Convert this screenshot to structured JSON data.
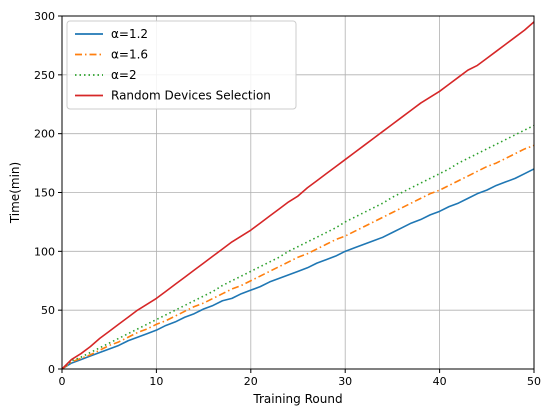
{
  "chart_data": {
    "type": "line",
    "xlabel": "Training Round",
    "ylabel": "Time(min)",
    "xlim": [
      0,
      50
    ],
    "ylim": [
      0,
      300
    ],
    "xticks": [
      0,
      10,
      20,
      30,
      40,
      50
    ],
    "yticks": [
      0,
      50,
      100,
      150,
      200,
      250,
      300
    ],
    "grid": true,
    "legend_position": "top-left",
    "x": [
      0,
      1,
      2,
      3,
      4,
      5,
      6,
      7,
      8,
      9,
      10,
      11,
      12,
      13,
      14,
      15,
      16,
      17,
      18,
      19,
      20,
      21,
      22,
      23,
      24,
      25,
      26,
      27,
      28,
      29,
      30,
      31,
      32,
      33,
      34,
      35,
      36,
      37,
      38,
      39,
      40,
      41,
      42,
      43,
      44,
      45,
      46,
      47,
      48,
      49,
      50
    ],
    "series": [
      {
        "name": "α=1.2",
        "color": "#1f77b4",
        "style": "solid",
        "values": [
          0,
          5,
          8,
          11,
          14,
          17,
          20,
          24,
          27,
          30,
          33,
          37,
          40,
          44,
          47,
          51,
          54,
          58,
          60,
          64,
          67,
          70,
          74,
          77,
          80,
          83,
          86,
          90,
          93,
          96,
          100,
          103,
          106,
          109,
          112,
          116,
          120,
          124,
          127,
          131,
          134,
          138,
          141,
          145,
          149,
          152,
          156,
          159,
          162,
          166,
          170
        ]
      },
      {
        "name": "α=1.6",
        "color": "#ff7f0e",
        "style": "dashdot",
        "values": [
          0,
          6,
          9,
          12,
          16,
          20,
          23,
          27,
          31,
          34,
          38,
          41,
          45,
          49,
          53,
          56,
          60,
          64,
          68,
          71,
          75,
          79,
          83,
          87,
          91,
          95,
          98,
          102,
          106,
          110,
          113,
          117,
          121,
          125,
          129,
          133,
          137,
          141,
          145,
          149,
          152,
          156,
          160,
          164,
          168,
          172,
          175,
          179,
          183,
          187,
          190
        ]
      },
      {
        "name": "α=2",
        "color": "#2ca02c",
        "style": "dotted",
        "values": [
          0,
          7,
          10,
          14,
          18,
          22,
          26,
          30,
          34,
          38,
          42,
          46,
          50,
          54,
          58,
          62,
          66,
          71,
          75,
          79,
          83,
          87,
          91,
          95,
          100,
          104,
          108,
          112,
          116,
          120,
          125,
          129,
          133,
          137,
          141,
          146,
          150,
          154,
          158,
          162,
          166,
          170,
          175,
          179,
          183,
          187,
          191,
          195,
          199,
          203,
          207
        ]
      },
      {
        "name": "Random Devices Selection",
        "color": "#d62728",
        "style": "solid",
        "values": [
          0,
          8,
          13,
          19,
          26,
          32,
          38,
          44,
          50,
          55,
          60,
          66,
          72,
          78,
          84,
          90,
          96,
          102,
          108,
          113,
          118,
          124,
          130,
          136,
          142,
          147,
          154,
          160,
          166,
          172,
          178,
          184,
          190,
          196,
          202,
          208,
          214,
          220,
          226,
          231,
          236,
          242,
          248,
          254,
          258,
          264,
          270,
          276,
          282,
          288,
          295
        ]
      }
    ]
  }
}
